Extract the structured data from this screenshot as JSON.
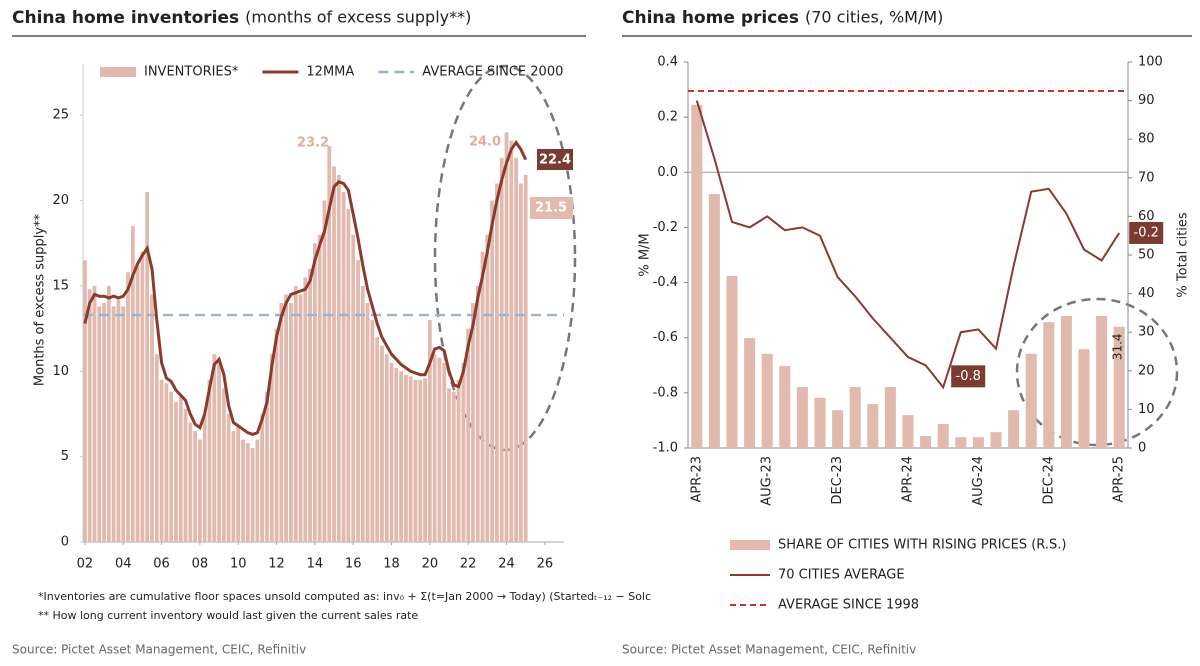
{
  "chart_data": [
    {
      "type": "bar_line",
      "title": "China home inventories",
      "subtitle": "(months of excess supply**)",
      "y_label": "Months of excess supply**",
      "x": [
        2002,
        2002.25,
        2002.5,
        2002.75,
        2003,
        2003.25,
        2003.5,
        2003.75,
        2004,
        2004.25,
        2004.5,
        2004.75,
        2005,
        2005.25,
        2005.5,
        2005.75,
        2006,
        2006.25,
        2006.5,
        2006.75,
        2007,
        2007.25,
        2007.5,
        2007.75,
        2008,
        2008.25,
        2008.5,
        2008.75,
        2009,
        2009.25,
        2009.5,
        2009.75,
        2010,
        2010.25,
        2010.5,
        2010.75,
        2011,
        2011.25,
        2011.5,
        2011.75,
        2012,
        2012.25,
        2012.5,
        2012.75,
        2013,
        2013.25,
        2013.5,
        2013.75,
        2014,
        2014.25,
        2014.5,
        2014.75,
        2015,
        2015.25,
        2015.5,
        2015.75,
        2016,
        2016.25,
        2016.5,
        2016.75,
        2017,
        2017.25,
        2017.5,
        2017.75,
        2018,
        2018.25,
        2018.5,
        2018.75,
        2019,
        2019.25,
        2019.5,
        2019.75,
        2020,
        2020.25,
        2020.5,
        2020.75,
        2021,
        2021.25,
        2021.5,
        2021.75,
        2022,
        2022.25,
        2022.5,
        2022.75,
        2023,
        2023.25,
        2023.5,
        2023.75,
        2024,
        2024.25,
        2024.5,
        2024.75,
        2025
      ],
      "xlim": [
        2001.9,
        2027
      ],
      "xticks": [
        {
          "value": 2002,
          "label": "02"
        },
        {
          "value": 2004,
          "label": "04"
        },
        {
          "value": 2006,
          "label": "06"
        },
        {
          "value": 2008,
          "label": "08"
        },
        {
          "value": 2010,
          "label": "10"
        },
        {
          "value": 2012,
          "label": "12"
        },
        {
          "value": 2014,
          "label": "14"
        },
        {
          "value": 2016,
          "label": "16"
        },
        {
          "value": 2018,
          "label": "18"
        },
        {
          "value": 2020,
          "label": "20"
        },
        {
          "value": 2022,
          "label": "22"
        },
        {
          "value": 2024,
          "label": "24"
        },
        {
          "value": 2026,
          "label": "26"
        }
      ],
      "ylim": [
        0,
        28
      ],
      "yticks": [
        0,
        5,
        10,
        15,
        20,
        25
      ],
      "series": [
        {
          "name": "INVENTORIES*",
          "type": "bar",
          "color": "#e2b9ae",
          "values": [
            16.5,
            14.8,
            15.0,
            13.8,
            14.0,
            15.0,
            13.8,
            14.2,
            13.8,
            15.8,
            18.5,
            16.2,
            17.0,
            20.5,
            14.5,
            11.0,
            9.5,
            9.3,
            8.8,
            8.2,
            8.5,
            7.8,
            7.0,
            6.5,
            6.0,
            7.5,
            9.5,
            11.0,
            10.5,
            9.0,
            7.5,
            6.5,
            6.8,
            6.0,
            5.8,
            5.5,
            6.0,
            7.5,
            8.8,
            11.0,
            12.5,
            14.0,
            14.5,
            14.0,
            15.0,
            14.5,
            15.5,
            16.0,
            17.5,
            18.0,
            20.0,
            23.2,
            22.0,
            21.5,
            20.5,
            19.5,
            18.0,
            16.5,
            15.0,
            14.0,
            13.0,
            12.0,
            11.5,
            11.0,
            10.5,
            10.2,
            10.0,
            9.8,
            9.7,
            9.5,
            9.5,
            9.6,
            13.0,
            11.0,
            10.8,
            10.5,
            9.0,
            8.8,
            9.5,
            10.5,
            12.5,
            14.0,
            15.0,
            17.0,
            18.0,
            20.0,
            21.0,
            22.5,
            24.0,
            23.5,
            22.5,
            21.0,
            21.5
          ]
        },
        {
          "name": "12MMA",
          "type": "line",
          "color": "#8b3a2e",
          "values": [
            12.8,
            14.0,
            14.5,
            14.4,
            14.4,
            14.3,
            14.4,
            14.3,
            14.4,
            14.8,
            15.6,
            16.3,
            16.8,
            17.2,
            16.0,
            13.0,
            10.5,
            9.6,
            9.4,
            8.9,
            8.6,
            8.3,
            7.5,
            6.9,
            6.7,
            7.5,
            9.0,
            10.4,
            10.7,
            9.8,
            8.0,
            7.0,
            6.8,
            6.6,
            6.4,
            6.3,
            6.4,
            7.2,
            8.2,
            10.3,
            12.0,
            13.2,
            14.0,
            14.5,
            14.6,
            14.7,
            14.8,
            15.3,
            16.5,
            17.4,
            18.2,
            19.5,
            20.8,
            21.1,
            21.0,
            20.6,
            19.2,
            17.8,
            16.2,
            14.8,
            13.8,
            12.8,
            12.0,
            11.5,
            11.0,
            10.7,
            10.4,
            10.2,
            10.0,
            9.9,
            9.8,
            9.8,
            10.5,
            11.3,
            11.4,
            11.2,
            10.0,
            9.2,
            9.1,
            10.0,
            11.5,
            12.7,
            14.3,
            15.6,
            17.0,
            18.6,
            20.0,
            21.2,
            22.2,
            23.0,
            23.4,
            23.0,
            22.4
          ]
        }
      ],
      "reference_line": {
        "name": "AVERAGE SINCE 2000",
        "value": 13.3,
        "color": "#9fb3cc"
      },
      "annotations": [
        "23.2",
        "24.0",
        "22.4",
        "21.5"
      ],
      "legend": "top",
      "footnotes": [
        "*Inventories are cumulative floor spaces unsold computed as:  inv₀ + Σ(t=Jan 2000 → Today) (Startedₜ₋₁₂ − Solc",
        "** How long current inventory would last given the current sales rate"
      ],
      "source": "Source: Pictet Asset Management, CEIC, Refinitiv"
    },
    {
      "type": "bar_line_dual",
      "title": "China home prices",
      "subtitle": "(70 cities, %M/M)",
      "y_label": "% M/M",
      "y2_label": "% Total cities",
      "categories": [
        "APR-23",
        null,
        null,
        null,
        "AUG-23",
        null,
        null,
        null,
        "DEC-23",
        null,
        null,
        null,
        "APR-24",
        null,
        null,
        null,
        "AUG-24",
        null,
        null,
        null,
        "DEC-24",
        null,
        null,
        null,
        "APR-25"
      ],
      "ylim": [
        -1,
        0.4
      ],
      "yticks": [
        {
          "value": -1,
          "label": "-1.0"
        },
        -0.8,
        -0.6,
        -0.4,
        -0.2,
        {
          "value": 0,
          "label": "0.0"
        },
        0.2,
        0.4
      ],
      "y2lim": [
        0,
        100
      ],
      "y2ticks": [
        0,
        10,
        20,
        30,
        40,
        50,
        60,
        70,
        80,
        90,
        100
      ],
      "zero_line": true,
      "series": [
        {
          "name": "SHARE OF CITIES WITH RISING PRICES (R.S.)",
          "type": "bar",
          "axis": "y2",
          "color": "#e2b9ae",
          "values": [
            88.9,
            65.8,
            44.6,
            28.5,
            24.4,
            21.2,
            15.8,
            13.0,
            9.8,
            15.8,
            11.4,
            15.8,
            8.5,
            3.1,
            6.2,
            2.8,
            2.8,
            4.1,
            9.8,
            24.4,
            32.6,
            34.2,
            25.6,
            34.2,
            31.4
          ],
          "value_labels": [
            null,
            null,
            null,
            null,
            null,
            null,
            null,
            null,
            null,
            null,
            null,
            null,
            null,
            null,
            null,
            null,
            null,
            null,
            null,
            null,
            null,
            null,
            null,
            null,
            "31.4"
          ]
        },
        {
          "name": "70 CITIES AVERAGE",
          "type": "line",
          "color": "#8b3a2e",
          "values": [
            0.26,
            0.05,
            -0.18,
            -0.2,
            -0.16,
            -0.21,
            -0.2,
            -0.23,
            -0.38,
            -0.45,
            -0.53,
            -0.6,
            -0.67,
            -0.7,
            -0.78,
            -0.58,
            -0.57,
            -0.64,
            -0.34,
            -0.07,
            -0.06,
            -0.15,
            -0.28,
            -0.32,
            -0.22
          ],
          "value_labels": [
            null,
            null,
            null,
            null,
            null,
            null,
            null,
            null,
            null,
            null,
            null,
            null,
            null,
            null,
            "-0.8",
            null,
            null,
            null,
            null,
            null,
            null,
            null,
            null,
            null,
            "-0.2"
          ]
        },
        {
          "name": "AVERAGE SINCE 1998",
          "type": "reference",
          "axis": "y2",
          "color": "#c0392b",
          "value": 92.5
        }
      ],
      "legend": "bottom",
      "source": "Source: Pictet Asset Management, CEIC, Refinitiv"
    }
  ]
}
